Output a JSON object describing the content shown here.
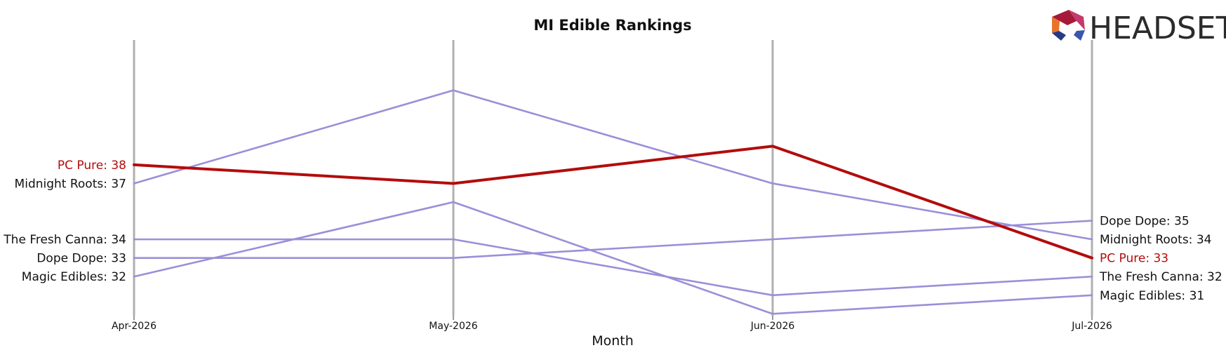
{
  "chart_data": {
    "type": "line",
    "title": "MI Edible Rankings",
    "xlabel": "Month",
    "ylabel": "",
    "x": [
      "Apr-2026",
      "May-2026",
      "Jun-2026",
      "Jul-2026"
    ],
    "ylim": [
      44.7,
      29.9
    ],
    "y_inverted": true,
    "grid": "vertical month lines",
    "series": [
      {
        "name": "Magic Edibles",
        "values": [
          32,
          36,
          30,
          31
        ],
        "color": "#9b8fd8",
        "highlight": false
      },
      {
        "name": "Dope Dope",
        "values": [
          33,
          33,
          34,
          35
        ],
        "color": "#9b8fd8",
        "highlight": false
      },
      {
        "name": "The Fresh Canna",
        "values": [
          34,
          34,
          31,
          32
        ],
        "color": "#9b8fd8",
        "highlight": false
      },
      {
        "name": "Midnight Roots",
        "values": [
          37,
          42,
          37,
          34
        ],
        "color": "#9b8fd8",
        "highlight": false
      },
      {
        "name": "PC Pure",
        "values": [
          38,
          37,
          39,
          33
        ],
        "color": "#b30c0c",
        "highlight": true
      }
    ],
    "start_labels": [
      {
        "text": "Magic Edibles: 32",
        "series": "Magic Edibles"
      },
      {
        "text": "Dope Dope: 33",
        "series": "Dope Dope"
      },
      {
        "text": "The Fresh Canna: 34",
        "series": "The Fresh Canna"
      },
      {
        "text": "Midnight Roots: 37",
        "series": "Midnight Roots"
      },
      {
        "text": "PC Pure: 38",
        "series": "PC Pure"
      }
    ],
    "end_labels": [
      {
        "text": "Magic Edibles: 31",
        "series": "Magic Edibles"
      },
      {
        "text": "The Fresh Canna: 32",
        "series": "The Fresh Canna"
      },
      {
        "text": "PC Pure: 33",
        "series": "PC Pure"
      },
      {
        "text": "Midnight Roots: 34",
        "series": "Midnight Roots"
      },
      {
        "text": "Dope Dope: 35",
        "series": "Dope Dope"
      }
    ],
    "colors": {
      "other": "#9b8fd8",
      "highlight": "#b30c0c",
      "gridline": "#b0b0b0"
    }
  },
  "logo": {
    "text": "HEADSET"
  }
}
